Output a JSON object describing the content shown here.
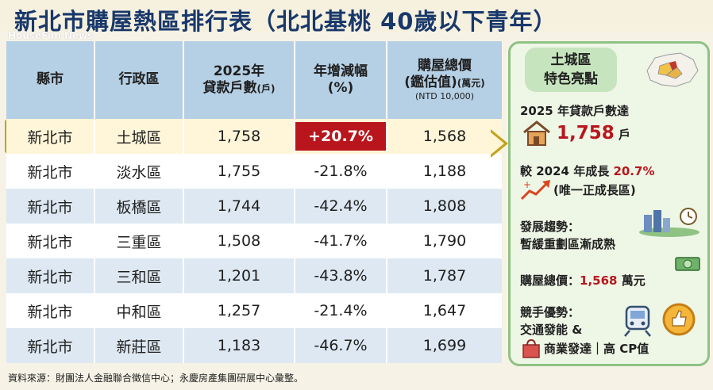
{
  "title": "新北市購屋熱區排行表（北北基桃 40歲以下青年）",
  "watermark": "HouseFun News",
  "headers": {
    "city": "縣市",
    "district": "行政區",
    "loans_line1": "2025年",
    "loans_line2": "貸款戶數",
    "loans_unit": "(戶)",
    "growth_line1": "年增減幅",
    "growth_line2": "(%)",
    "price_line1": "購屋總價",
    "price_line2": "(鑑估值)",
    "price_unit": "(萬元)",
    "price_line3": "(NTD 10,000)"
  },
  "rows": [
    {
      "city": "新北市",
      "district": "土城區",
      "loans": "1,758",
      "growth": "+20.7%",
      "price": "1,568"
    },
    {
      "city": "新北市",
      "district": "淡水區",
      "loans": "1,755",
      "growth": "-21.8%",
      "price": "1,188"
    },
    {
      "city": "新北市",
      "district": "板橋區",
      "loans": "1,744",
      "growth": "-42.4%",
      "price": "1,808"
    },
    {
      "city": "新北市",
      "district": "三重區",
      "loans": "1,508",
      "growth": "-41.7%",
      "price": "1,790"
    },
    {
      "city": "新北市",
      "district": "三和區",
      "loans": "1,201",
      "growth": "-43.8%",
      "price": "1,787"
    },
    {
      "city": "新北市",
      "district": "中和區",
      "loans": "1,257",
      "growth": "-21.4%",
      "price": "1,647"
    },
    {
      "city": "新北市",
      "district": "新莊區",
      "loans": "1,183",
      "growth": "-46.7%",
      "price": "1,699"
    }
  ],
  "source": "資料來源：財團法人金融聯合徵信中心；永慶房產集團研展中心彙整。",
  "panel": {
    "head_line1": "土城區",
    "head_line2": "特色亮點",
    "loans_label": "2025 年貸款戶數達",
    "loans_value": "1,758",
    "loans_unit": "戶",
    "growth_label": "較 2024 年成長",
    "growth_value": "20.7%",
    "growth_note": "(唯一正成長區)",
    "trend_label": "發展趨勢：",
    "trend_text": "暫緩重劃區漸成熟",
    "price_label": "購屋總價：",
    "price_value": "1,568",
    "price_unit": "萬元",
    "adv_label": "競手優勢：",
    "adv_line1": "交通發能 &",
    "adv_line2": "商業發達｜高 CP值"
  },
  "colors": {
    "title": "#18386b",
    "header_bg": "#b5cfe4",
    "highlight_border": "#c3a21f",
    "growth_red": "#b8161c",
    "panel_border": "#8fc283"
  }
}
